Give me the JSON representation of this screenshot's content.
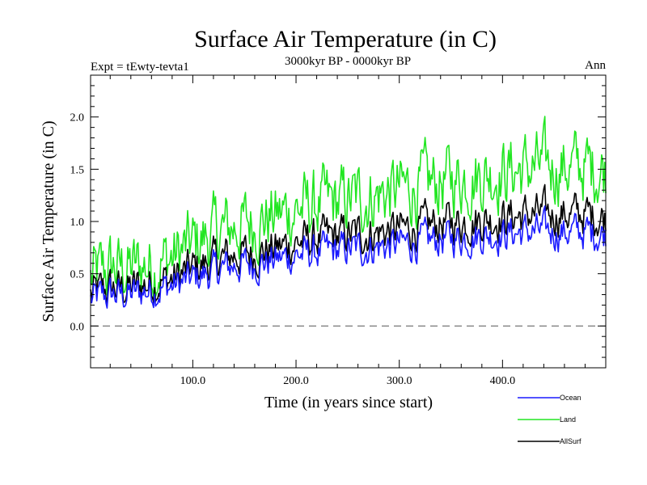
{
  "chart_data": {
    "type": "line",
    "title": "Surface Air Temperature (in C)",
    "subtitle": "3000kyr BP - 0000kyr BP",
    "left_label": "Expt = tEwty-tevta1",
    "right_label": "Ann",
    "xlabel": "Time (in years since start)",
    "ylabel": "Surface Air Temperature (in C)",
    "xlim": [
      1,
      500
    ],
    "ylim": [
      -0.4,
      2.4
    ],
    "xticks": [
      100,
      200,
      300,
      400
    ],
    "xtick_labels": [
      "100.0",
      "200.0",
      "300.0",
      "400.0"
    ],
    "yticks": [
      0.0,
      0.5,
      1.0,
      1.5,
      2.0
    ],
    "ytick_labels": [
      "0.0",
      "0.5",
      "1.0",
      "1.5",
      "2.0"
    ],
    "reference_line": 0.0,
    "legend_position": "bottom-right",
    "series": [
      {
        "name": "Ocean",
        "color": "#1a1aff",
        "x": [
          1,
          20,
          40,
          60,
          80,
          100,
          120,
          140,
          160,
          180,
          200,
          220,
          240,
          260,
          280,
          300,
          320,
          340,
          360,
          380,
          400,
          420,
          440,
          460,
          480,
          500
        ],
        "values": [
          0.25,
          0.3,
          0.3,
          0.35,
          0.38,
          0.45,
          0.52,
          0.58,
          0.6,
          0.63,
          0.68,
          0.7,
          0.72,
          0.74,
          0.76,
          0.78,
          0.8,
          0.83,
          0.85,
          0.87,
          0.88,
          0.9,
          0.9,
          0.9,
          0.9,
          0.88
        ]
      },
      {
        "name": "Land",
        "color": "#22e622",
        "x": [
          1,
          20,
          40,
          60,
          80,
          100,
          120,
          140,
          160,
          180,
          200,
          220,
          240,
          260,
          280,
          300,
          320,
          340,
          360,
          380,
          400,
          420,
          440,
          460,
          480,
          500
        ],
        "values": [
          0.45,
          0.55,
          0.55,
          0.6,
          0.65,
          0.78,
          0.88,
          0.95,
          1.0,
          1.05,
          1.12,
          1.15,
          1.18,
          1.22,
          1.26,
          1.3,
          1.33,
          1.38,
          1.42,
          1.45,
          1.48,
          1.5,
          1.52,
          1.52,
          1.52,
          1.5
        ]
      },
      {
        "name": "AllSurf",
        "color": "#000000",
        "x": [
          1,
          20,
          40,
          60,
          80,
          100,
          120,
          140,
          160,
          180,
          200,
          220,
          240,
          260,
          280,
          300,
          320,
          340,
          360,
          380,
          400,
          420,
          440,
          460,
          480,
          500
        ],
        "values": [
          0.3,
          0.36,
          0.36,
          0.42,
          0.45,
          0.55,
          0.62,
          0.68,
          0.7,
          0.74,
          0.8,
          0.83,
          0.86,
          0.88,
          0.9,
          0.92,
          0.94,
          0.98,
          1.0,
          1.02,
          1.04,
          1.06,
          1.07,
          1.07,
          1.07,
          1.04
        ]
      }
    ]
  }
}
